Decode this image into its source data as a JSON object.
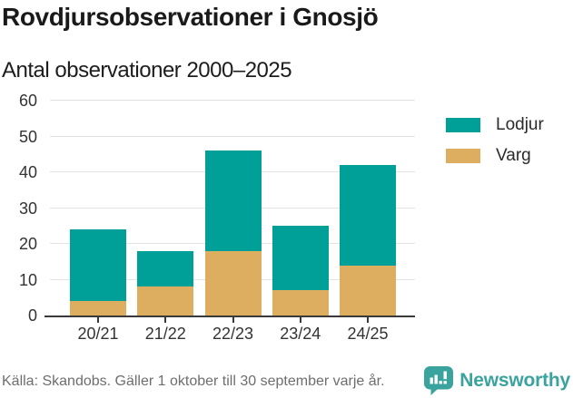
{
  "header": {
    "title": "Rovdjursobservationer i Gnosjö",
    "subtitle": "Antal observationer 2000–2025"
  },
  "chart_data": {
    "type": "bar",
    "stacked": true,
    "title": "Rovdjursobservationer i Gnosjö",
    "subtitle": "Antal observationer 2000–2025",
    "categories": [
      "20/21",
      "21/22",
      "22/23",
      "23/24",
      "24/25"
    ],
    "series": [
      {
        "name": "Varg",
        "color": "#ddae5f",
        "values": [
          4,
          8,
          18,
          7,
          14
        ]
      },
      {
        "name": "Lodjur",
        "color": "#00a099",
        "values": [
          20,
          10,
          28,
          18,
          28
        ]
      }
    ],
    "totals": [
      24,
      18,
      46,
      25,
      42
    ],
    "xlabel": "",
    "ylabel": "",
    "ylim": [
      0,
      60
    ],
    "yticks": [
      0,
      10,
      20,
      30,
      40,
      50,
      60
    ],
    "grid": true,
    "legend_position": "right",
    "legend_order": [
      "Lodjur",
      "Varg"
    ]
  },
  "footer": {
    "source": "Källa: Skandobs. Gäller 1 oktober till 30 september varje år.",
    "brand": "Newsworthy",
    "brand_icon": "bar-chart-speech-bubble-icon",
    "brand_color": "#3aa39e"
  }
}
